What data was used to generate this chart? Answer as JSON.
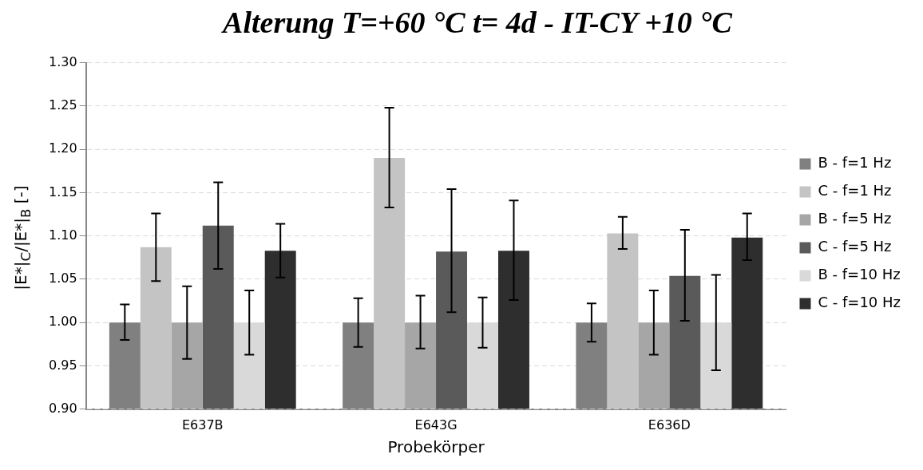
{
  "chart_data": {
    "type": "bar",
    "title": "Alterung T=+60 °C t= 4d - IT-CY +10 °C",
    "xlabel": "Probekörper",
    "ylabel": "|E*|$_{C}$/|E*|$_{B}$ [-]",
    "categories": [
      "E637B",
      "E643G",
      "E636D"
    ],
    "series": [
      {
        "name": "B - f=1 Hz",
        "color": "#808080",
        "values": [
          1.0,
          1.0,
          1.0
        ],
        "errors": [
          [
            0.98,
            1.021
          ],
          [
            0.972,
            1.028
          ],
          [
            0.978,
            1.022
          ]
        ]
      },
      {
        "name": "C - f=1 Hz",
        "color": "#c4c4c4",
        "values": [
          1.087,
          1.19,
          1.103
        ],
        "errors": [
          [
            1.048,
            1.126
          ],
          [
            1.133,
            1.248
          ],
          [
            1.085,
            1.122
          ]
        ]
      },
      {
        "name": "B - f=5 Hz",
        "color": "#a6a6a6",
        "values": [
          1.0,
          1.0,
          1.0
        ],
        "errors": [
          [
            0.958,
            1.042
          ],
          [
            0.97,
            1.031
          ],
          [
            0.963,
            1.037
          ]
        ]
      },
      {
        "name": "C - f=5 Hz",
        "color": "#5a5a5a",
        "values": [
          1.112,
          1.082,
          1.054
        ],
        "errors": [
          [
            1.062,
            1.162
          ],
          [
            1.012,
            1.154
          ],
          [
            1.002,
            1.107
          ]
        ]
      },
      {
        "name": "B - f=10 Hz",
        "color": "#d9d9d9",
        "values": [
          1.0,
          1.0,
          1.0
        ],
        "errors": [
          [
            0.963,
            1.037
          ],
          [
            0.971,
            1.029
          ],
          [
            0.945,
            1.055
          ]
        ]
      },
      {
        "name": "C - f=10 Hz",
        "color": "#2e2e2e",
        "values": [
          1.083,
          1.083,
          1.098
        ],
        "errors": [
          [
            1.052,
            1.114
          ],
          [
            1.026,
            1.141
          ],
          [
            1.072,
            1.126
          ]
        ]
      }
    ],
    "ylim": [
      0.9,
      1.3
    ],
    "yticks": [
      {
        "value": 0.9,
        "label": "0.90"
      },
      {
        "value": 0.95,
        "label": "0.95"
      },
      {
        "value": 1.0,
        "label": "1.00"
      },
      {
        "value": 1.05,
        "label": "1.05"
      },
      {
        "value": 1.1,
        "label": "1.10"
      },
      {
        "value": 1.15,
        "label": "1.15"
      },
      {
        "value": 1.2,
        "label": "1.20"
      },
      {
        "value": 1.25,
        "label": "1.25"
      },
      {
        "value": 1.3,
        "label": "1.30"
      }
    ],
    "grid": "y",
    "legend": "right"
  }
}
